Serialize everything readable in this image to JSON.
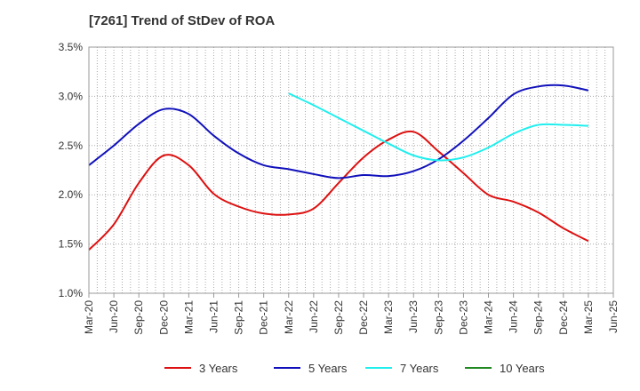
{
  "chart_data": {
    "type": "line",
    "title": "[7261]  Trend of StDev of ROA",
    "xlabel": "",
    "ylabel": "",
    "x_ticks": [
      "Mar-20",
      "Jun-20",
      "Sep-20",
      "Dec-20",
      "Mar-21",
      "Jun-21",
      "Sep-21",
      "Dec-21",
      "Mar-22",
      "Jun-22",
      "Sep-22",
      "Dec-22",
      "Mar-23",
      "Jun-23",
      "Sep-23",
      "Dec-23",
      "Mar-24",
      "Jun-24",
      "Sep-24",
      "Dec-24",
      "Mar-25",
      "Jun-25"
    ],
    "y_ticks": [
      "1.0%",
      "1.5%",
      "2.0%",
      "2.5%",
      "3.0%",
      "3.5%"
    ],
    "ylim": [
      1.0,
      3.5
    ],
    "grid": true,
    "legend_position": "bottom",
    "series": [
      {
        "name": "3 Years",
        "color": "#dd1111",
        "points": [
          [
            "Mar-20",
            1.44
          ],
          [
            "Jun-20",
            1.7
          ],
          [
            "Sep-20",
            2.12
          ],
          [
            "Dec-20",
            2.4
          ],
          [
            "Mar-21",
            2.3
          ],
          [
            "Jun-21",
            2.01
          ],
          [
            "Sep-21",
            1.88
          ],
          [
            "Dec-21",
            1.81
          ],
          [
            "Mar-22",
            1.8
          ],
          [
            "Jun-22",
            1.86
          ],
          [
            "Sep-22",
            2.12
          ],
          [
            "Dec-22",
            2.38
          ],
          [
            "Mar-23",
            2.56
          ],
          [
            "Jun-23",
            2.64
          ],
          [
            "Sep-23",
            2.44
          ],
          [
            "Dec-23",
            2.22
          ],
          [
            "Mar-24",
            2.0
          ],
          [
            "Jun-24",
            1.93
          ],
          [
            "Sep-24",
            1.82
          ],
          [
            "Dec-24",
            1.66
          ],
          [
            "Mar-25",
            1.53
          ]
        ]
      },
      {
        "name": "5 Years",
        "color": "#1111bb",
        "points": [
          [
            "Mar-20",
            2.3
          ],
          [
            "Jun-20",
            2.5
          ],
          [
            "Sep-20",
            2.72
          ],
          [
            "Dec-20",
            2.87
          ],
          [
            "Mar-21",
            2.82
          ],
          [
            "Jun-21",
            2.6
          ],
          [
            "Sep-21",
            2.42
          ],
          [
            "Dec-21",
            2.3
          ],
          [
            "Mar-22",
            2.26
          ],
          [
            "Jun-22",
            2.21
          ],
          [
            "Sep-22",
            2.17
          ],
          [
            "Dec-22",
            2.2
          ],
          [
            "Mar-23",
            2.19
          ],
          [
            "Jun-23",
            2.24
          ],
          [
            "Sep-23",
            2.36
          ],
          [
            "Dec-23",
            2.55
          ],
          [
            "Mar-24",
            2.78
          ],
          [
            "Jun-24",
            3.02
          ],
          [
            "Sep-24",
            3.1
          ],
          [
            "Dec-24",
            3.11
          ],
          [
            "Mar-25",
            3.06
          ]
        ]
      },
      {
        "name": "7 Years",
        "color": "#22eeee",
        "points": [
          [
            "Mar-22",
            3.03
          ],
          [
            "Jun-22",
            2.91
          ],
          [
            "Sep-22",
            2.78
          ],
          [
            "Dec-22",
            2.65
          ],
          [
            "Mar-23",
            2.52
          ],
          [
            "Jun-23",
            2.4
          ],
          [
            "Sep-23",
            2.35
          ],
          [
            "Dec-23",
            2.38
          ],
          [
            "Mar-24",
            2.48
          ],
          [
            "Jun-24",
            2.62
          ],
          [
            "Sep-24",
            2.71
          ],
          [
            "Dec-24",
            2.71
          ],
          [
            "Mar-25",
            2.7
          ]
        ]
      },
      {
        "name": "10 Years",
        "color": "#228822",
        "points": []
      }
    ]
  }
}
